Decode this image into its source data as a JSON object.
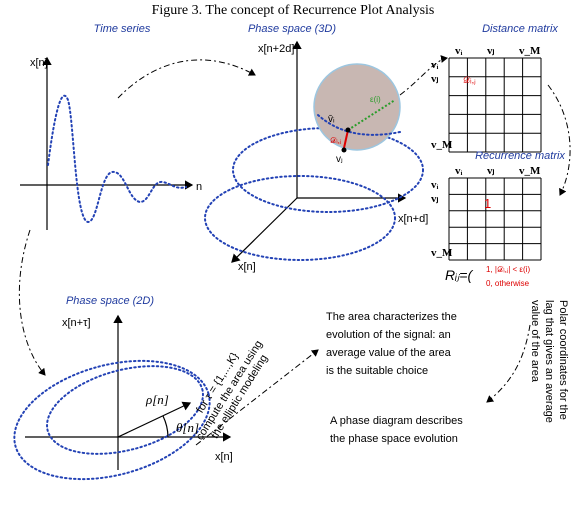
{
  "title": "Figure 3.    The concept of Recurrence Plot Analysis",
  "time_series": {
    "label": "Time series",
    "y_axis": "x[n]",
    "x_axis": "n"
  },
  "phase3d": {
    "label": "Phase space (3D)",
    "z_axis": "x[n+2d]",
    "x_axis": "x[n+d]",
    "y_axis": "x[n]",
    "vi": "v̄ᵢ",
    "vj": "vⱼ",
    "eps": "ε(i)",
    "dist": "𝒟ᵢ,ⱼ"
  },
  "distance_matrix": {
    "label": "Distance matrix",
    "cols": [
      "vᵢ",
      "vⱼ",
      "v_M"
    ],
    "rows": [
      "vᵢ",
      "vⱼ",
      "v_M"
    ],
    "cell": "𝒟ᵢ,ⱼ"
  },
  "recurrence_matrix": {
    "label": "Recurrence matrix",
    "cols": [
      "vᵢ",
      "vⱼ",
      "v_M"
    ],
    "rows": [
      "vᵢ",
      "vⱼ",
      "v_M"
    ],
    "cell": "1"
  },
  "formula": {
    "lhs": "Rᵢⱼ=(",
    "case1": "1, |𝒟ᵢ,ⱼ| < ε(i)",
    "case2": "0, otherwise"
  },
  "phase2d": {
    "label": "Phase space (2D)",
    "y_axis": "x[n+τ]",
    "x_axis": "x[n]",
    "rho": "ρ[n]",
    "theta": "θ[n]"
  },
  "arrow_text": [
    "for τ = {1,...,K}",
    "compute the area using",
    "the elliptic modeling"
  ],
  "area_text": [
    "The area  characterizes the",
    "evolution of the signal: an",
    "average value of the area",
    "is the suitable choice"
  ],
  "phase_text": [
    "A phase diagram  describes",
    "the phase space evolution"
  ],
  "polar_text": [
    "Polar coordinates for the",
    "lag that gives  an average",
    "value of the area"
  ]
}
